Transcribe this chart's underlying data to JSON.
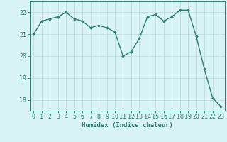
{
  "x": [
    0,
    1,
    2,
    3,
    4,
    5,
    6,
    7,
    8,
    9,
    10,
    11,
    12,
    13,
    14,
    15,
    16,
    17,
    18,
    19,
    20,
    21,
    22,
    23
  ],
  "y": [
    21.0,
    21.6,
    21.7,
    21.8,
    22.0,
    21.7,
    21.6,
    21.3,
    21.4,
    21.3,
    21.1,
    20.0,
    20.2,
    20.8,
    21.8,
    21.9,
    21.6,
    21.8,
    22.1,
    22.1,
    20.9,
    19.4,
    18.1,
    17.7
  ],
  "line_color": "#2e7d6e",
  "marker": "D",
  "marker_size": 1.8,
  "line_width": 1.0,
  "background_color": "#d8f4f4",
  "grid_color": "#b8d8d8",
  "axis_color": "#2e7d6e",
  "xlabel": "Humidex (Indice chaleur)",
  "xlabel_fontsize": 6.5,
  "tick_fontsize": 6,
  "ylim": [
    17.5,
    22.5
  ],
  "yticks": [
    18,
    19,
    20,
    21,
    22
  ],
  "xlim": [
    -0.5,
    23.5
  ],
  "xticks": [
    0,
    1,
    2,
    3,
    4,
    5,
    6,
    7,
    8,
    9,
    10,
    11,
    12,
    13,
    14,
    15,
    16,
    17,
    18,
    19,
    20,
    21,
    22,
    23
  ]
}
